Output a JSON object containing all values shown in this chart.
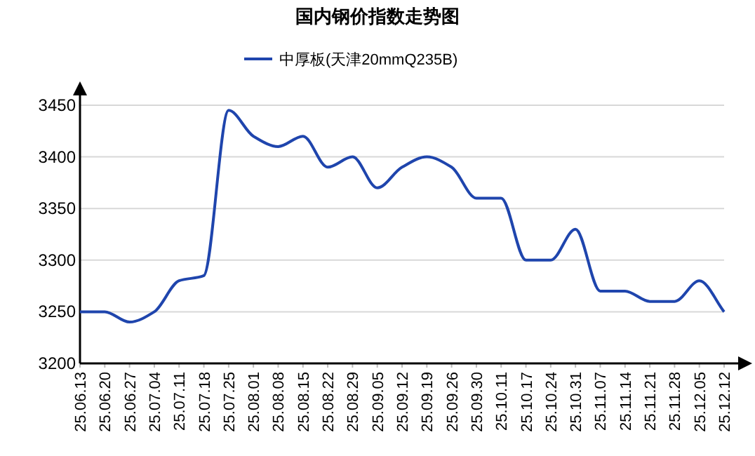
{
  "chart_data": {
    "type": "line",
    "title": "国内钢价指数走势图",
    "categories": [
      "25.06.13",
      "25.06.20",
      "25.06.27",
      "25.07.04",
      "25.07.11",
      "25.07.18",
      "25.07.25",
      "25.08.01",
      "25.08.08",
      "25.08.15",
      "25.08.22",
      "25.08.29",
      "25.09.05",
      "25.09.12",
      "25.09.19",
      "25.09.26",
      "25.09.30",
      "25.10.11",
      "25.10.17",
      "25.10.24",
      "25.10.31",
      "25.11.07",
      "25.11.14",
      "25.11.21",
      "25.11.28",
      "25.12.05",
      "25.12.12"
    ],
    "series": [
      {
        "name": "中厚板(天津20mmQ235B)",
        "color": "#1f45ad",
        "values": [
          3250,
          3250,
          3240,
          3250,
          3280,
          3285,
          3445,
          3420,
          3410,
          3420,
          3390,
          3400,
          3370,
          3390,
          3400,
          3390,
          3360,
          3360,
          3300,
          3300,
          3330,
          3270,
          3270,
          3260,
          3260,
          3280,
          3250
        ]
      }
    ],
    "ylim": [
      3200,
      3450
    ],
    "yticks": [
      3200,
      3250,
      3300,
      3350,
      3400,
      3450
    ],
    "grid": "y",
    "legend": "top",
    "marker": "none",
    "line_style": "solid"
  }
}
